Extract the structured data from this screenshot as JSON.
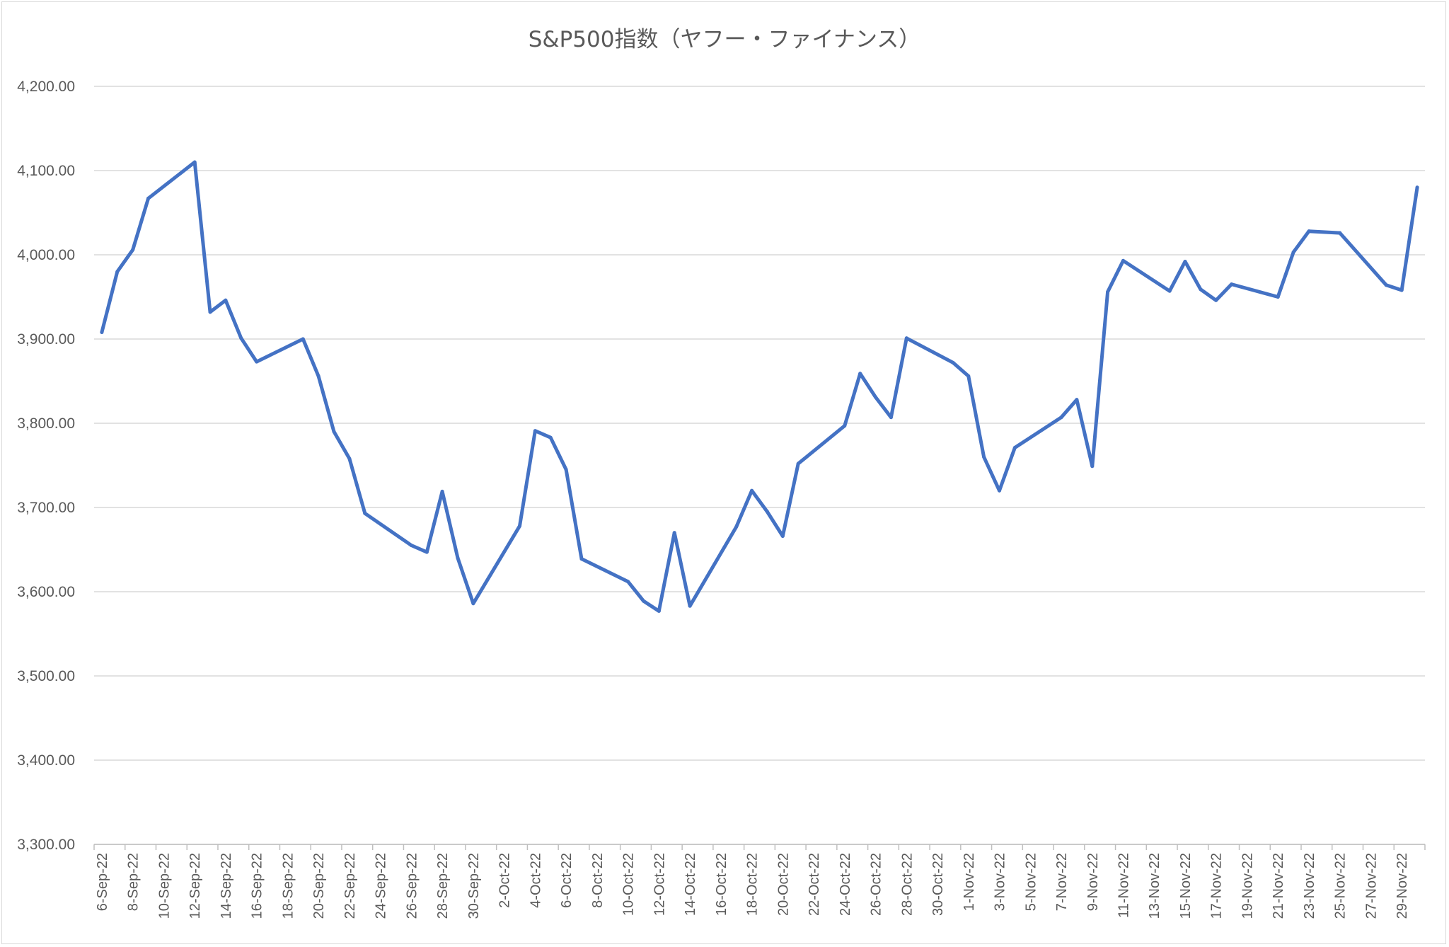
{
  "chart_data": {
    "type": "line",
    "title": "S&P500指数（ヤフー・ファイナンス）",
    "xlabel": "",
    "ylabel": "",
    "ylim": [
      3300,
      4200
    ],
    "y_ticks": [
      "3,300.00",
      "3,400.00",
      "3,500.00",
      "3,600.00",
      "3,700.00",
      "3,800.00",
      "3,900.00",
      "4,000.00",
      "4,100.00",
      "4,200.00"
    ],
    "x_tick_labels": [
      "6-Sep-22",
      "8-Sep-22",
      "10-Sep-22",
      "12-Sep-22",
      "14-Sep-22",
      "16-Sep-22",
      "18-Sep-22",
      "20-Sep-22",
      "22-Sep-22",
      "24-Sep-22",
      "26-Sep-22",
      "28-Sep-22",
      "30-Sep-22",
      "2-Oct-22",
      "4-Oct-22",
      "6-Oct-22",
      "8-Oct-22",
      "10-Oct-22",
      "12-Oct-22",
      "14-Oct-22",
      "16-Oct-22",
      "18-Oct-22",
      "20-Oct-22",
      "22-Oct-22",
      "24-Oct-22",
      "26-Oct-22",
      "28-Oct-22",
      "30-Oct-22",
      "1-Nov-22",
      "3-Nov-22",
      "5-Nov-22",
      "7-Nov-22",
      "9-Nov-22",
      "11-Nov-22",
      "13-Nov-22",
      "15-Nov-22",
      "17-Nov-22",
      "19-Nov-22",
      "21-Nov-22",
      "23-Nov-22",
      "25-Nov-22",
      "27-Nov-22",
      "29-Nov-22"
    ],
    "x_start": "6-Sep-22",
    "x_end": "30-Nov-22",
    "grid": true,
    "color": "#4472c4",
    "series": [
      {
        "points": [
          [
            "6-Sep-22",
            3908
          ],
          [
            "7-Sep-22",
            3980
          ],
          [
            "8-Sep-22",
            4006
          ],
          [
            "9-Sep-22",
            4067
          ],
          [
            "12-Sep-22",
            4110
          ],
          [
            "13-Sep-22",
            3932
          ],
          [
            "14-Sep-22",
            3946
          ],
          [
            "15-Sep-22",
            3901
          ],
          [
            "16-Sep-22",
            3873
          ],
          [
            "19-Sep-22",
            3900
          ],
          [
            "20-Sep-22",
            3856
          ],
          [
            "21-Sep-22",
            3790
          ],
          [
            "22-Sep-22",
            3758
          ],
          [
            "23-Sep-22",
            3693
          ],
          [
            "26-Sep-22",
            3655
          ],
          [
            "27-Sep-22",
            3647
          ],
          [
            "28-Sep-22",
            3719
          ],
          [
            "29-Sep-22",
            3640
          ],
          [
            "30-Sep-22",
            3586
          ],
          [
            "3-Oct-22",
            3678
          ],
          [
            "4-Oct-22",
            3791
          ],
          [
            "5-Oct-22",
            3783
          ],
          [
            "6-Oct-22",
            3745
          ],
          [
            "7-Oct-22",
            3639
          ],
          [
            "10-Oct-22",
            3612
          ],
          [
            "11-Oct-22",
            3589
          ],
          [
            "12-Oct-22",
            3577
          ],
          [
            "13-Oct-22",
            3670
          ],
          [
            "14-Oct-22",
            3583
          ],
          [
            "17-Oct-22",
            3677
          ],
          [
            "18-Oct-22",
            3720
          ],
          [
            "19-Oct-22",
            3695
          ],
          [
            "20-Oct-22",
            3666
          ],
          [
            "21-Oct-22",
            3752
          ],
          [
            "24-Oct-22",
            3797
          ],
          [
            "25-Oct-22",
            3859
          ],
          [
            "26-Oct-22",
            3831
          ],
          [
            "27-Oct-22",
            3807
          ],
          [
            "28-Oct-22",
            3901
          ],
          [
            "31-Oct-22",
            3872
          ],
          [
            "1-Nov-22",
            3856
          ],
          [
            "2-Nov-22",
            3760
          ],
          [
            "3-Nov-22",
            3720
          ],
          [
            "4-Nov-22",
            3771
          ],
          [
            "7-Nov-22",
            3807
          ],
          [
            "8-Nov-22",
            3828
          ],
          [
            "9-Nov-22",
            3749
          ],
          [
            "10-Nov-22",
            3956
          ],
          [
            "11-Nov-22",
            3993
          ],
          [
            "14-Nov-22",
            3957
          ],
          [
            "15-Nov-22",
            3992
          ],
          [
            "16-Nov-22",
            3959
          ],
          [
            "17-Nov-22",
            3946
          ],
          [
            "18-Nov-22",
            3965
          ],
          [
            "21-Nov-22",
            3950
          ],
          [
            "22-Nov-22",
            4003
          ],
          [
            "23-Nov-22",
            4028
          ],
          [
            "25-Nov-22",
            4026
          ],
          [
            "28-Nov-22",
            3964
          ],
          [
            "29-Nov-22",
            3958
          ],
          [
            "30-Nov-22",
            4080
          ]
        ]
      }
    ]
  }
}
